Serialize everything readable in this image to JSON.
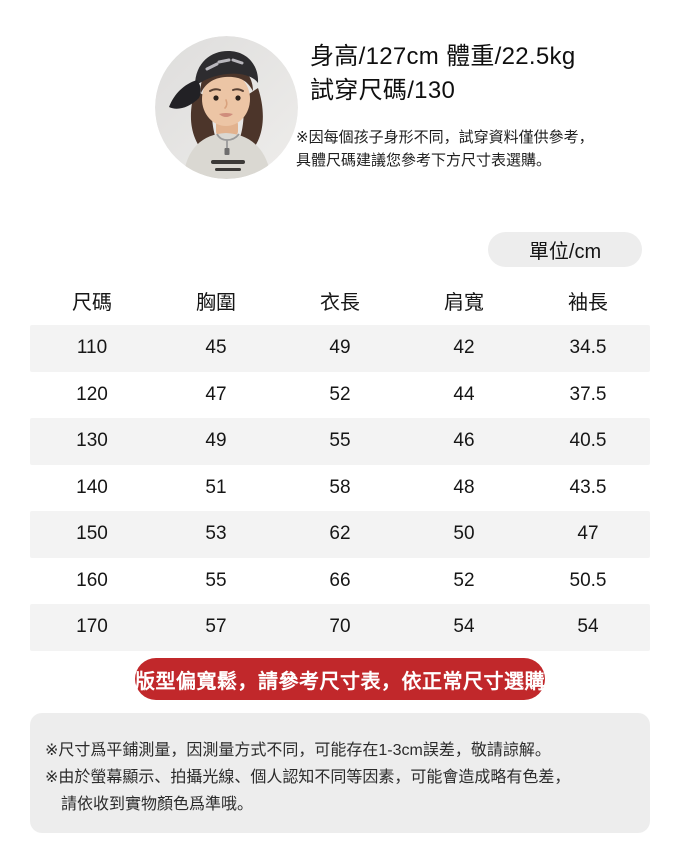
{
  "model": {
    "stats_line1": "身高/127cm 體重/22.5kg",
    "stats_line2": "試穿尺碼/130",
    "note_line1": "※因每個孩子身形不同，試穿資料僅供參考，",
    "note_line2": "具體尺碼建議您參考下方尺寸表選購。"
  },
  "unit_label": "單位/cm",
  "size_table": {
    "headers": [
      "尺碼",
      "胸圍",
      "衣長",
      "肩寬",
      "袖長"
    ],
    "rows": [
      [
        "110",
        "45",
        "49",
        "42",
        "34.5"
      ],
      [
        "120",
        "47",
        "52",
        "44",
        "37.5"
      ],
      [
        "130",
        "49",
        "55",
        "46",
        "40.5"
      ],
      [
        "140",
        "51",
        "58",
        "48",
        "43.5"
      ],
      [
        "150",
        "53",
        "62",
        "50",
        "47"
      ],
      [
        "160",
        "55",
        "66",
        "52",
        "50.5"
      ],
      [
        "170",
        "57",
        "70",
        "54",
        "54"
      ]
    ]
  },
  "banner": {
    "text": "版型偏寬鬆，請參考尺寸表，依正常尺寸選購",
    "bg_color": "#c1282b",
    "text_color": "#ffffff"
  },
  "footer_notes": [
    "※尺寸爲平鋪測量，因測量方式不同，可能存在1-3cm誤差，敬請諒解。",
    "※由於螢幕顯示、拍攝光線、個人認知不同等因素，可能會造成略有色差，",
    "　請依收到實物顏色爲準哦。"
  ],
  "colors": {
    "stripe": "#f3f3f3",
    "pill_bg": "#ededed",
    "footer_bg": "#ededed",
    "text": "#141414"
  },
  "icons": {
    "avatar": "child-model-photo"
  }
}
